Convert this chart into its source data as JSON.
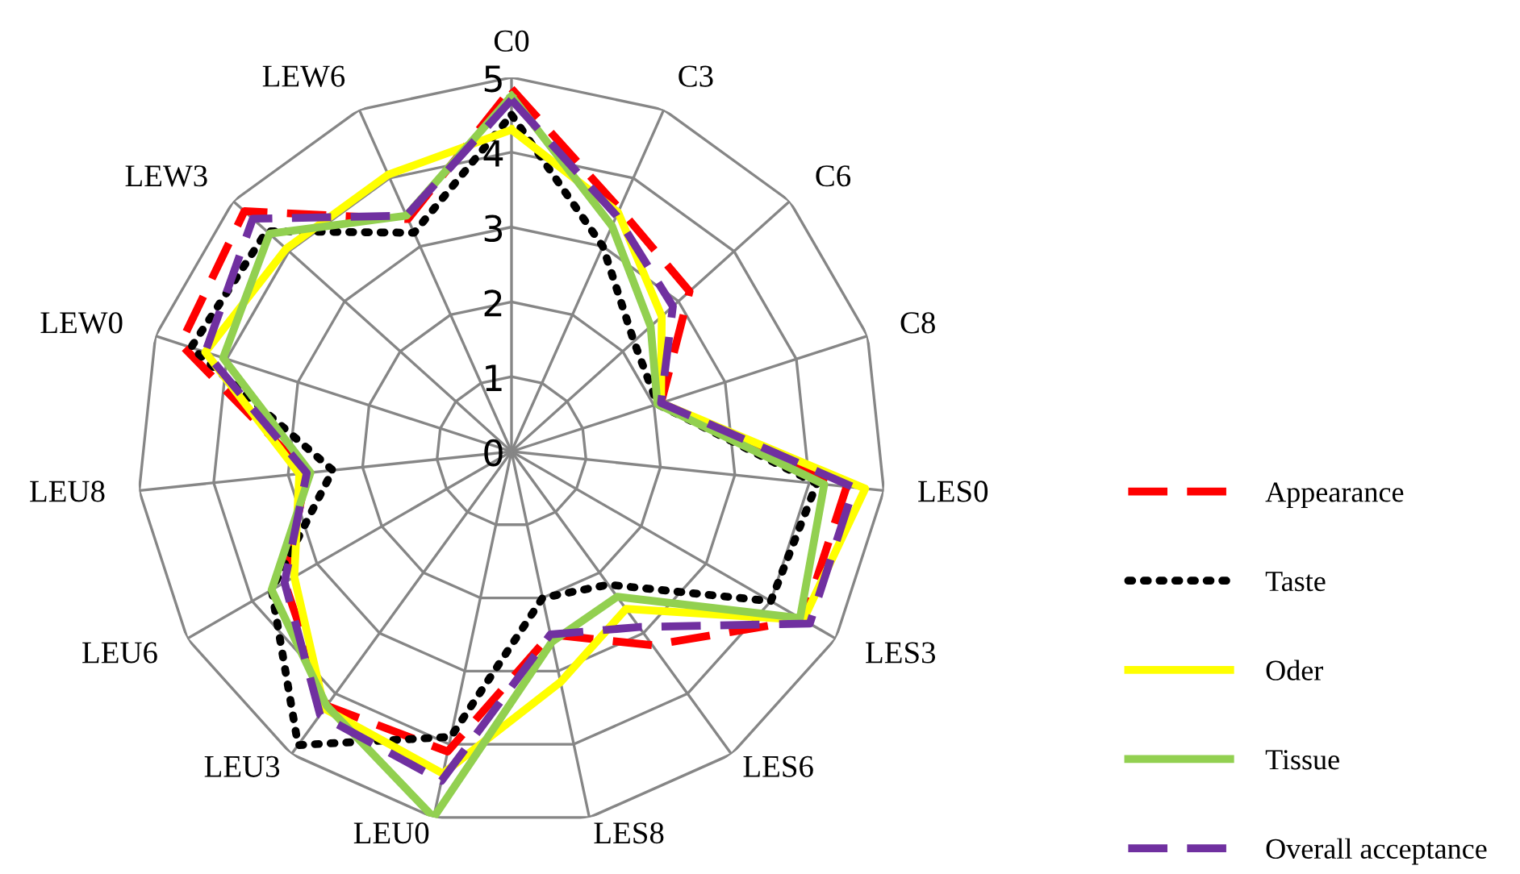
{
  "chart_data": {
    "type": "radar",
    "categories": [
      "C0",
      "C3",
      "C6",
      "C8",
      "LES0",
      "LES3",
      "LES6",
      "LES8",
      "LEU0",
      "LEU3",
      "LEU6",
      "LEU8",
      "LEW0",
      "LEW3",
      "LEW6"
    ],
    "ylim": [
      0,
      5
    ],
    "yticks": [
      0,
      1,
      2,
      3,
      4,
      5
    ],
    "grid": true,
    "legend": "right",
    "series": [
      {
        "name": "Appearance",
        "color": "#ff0000",
        "line_style": "dashed",
        "values": [
          4.85,
          3.55,
          3.2,
          2.1,
          4.5,
          4.5,
          3.2,
          2.5,
          4.1,
          4.2,
          3.5,
          2.75,
          4.65,
          4.8,
          3.4
        ]
      },
      {
        "name": "Taste",
        "color": "#000000",
        "line_style": "dotted",
        "values": [
          4.5,
          3.0,
          2.2,
          2.05,
          4.1,
          4.0,
          2.2,
          2.0,
          3.9,
          4.85,
          3.7,
          2.4,
          4.5,
          4.4,
          3.2
        ]
      },
      {
        "name": "Oder",
        "color": "#ffff00",
        "line_style": "solid",
        "values": [
          4.3,
          3.5,
          2.7,
          2.1,
          4.75,
          4.5,
          2.6,
          3.15,
          4.4,
          4.25,
          3.35,
          2.85,
          4.3,
          4.05,
          4.05
        ]
      },
      {
        "name": "Tissue",
        "color": "#92d050",
        "line_style": "solid",
        "values": [
          4.75,
          3.3,
          2.5,
          2.05,
          4.2,
          4.45,
          2.4,
          2.6,
          5.0,
          4.2,
          3.7,
          2.7,
          4.05,
          4.35,
          3.45
        ]
      },
      {
        "name": "Overall acceptance",
        "color": "#7030a0",
        "line_style": "dashed",
        "values": [
          4.7,
          3.45,
          2.9,
          2.1,
          4.6,
          4.6,
          2.9,
          2.5,
          4.5,
          4.35,
          3.5,
          2.75,
          4.3,
          4.65,
          3.45
        ]
      }
    ]
  }
}
